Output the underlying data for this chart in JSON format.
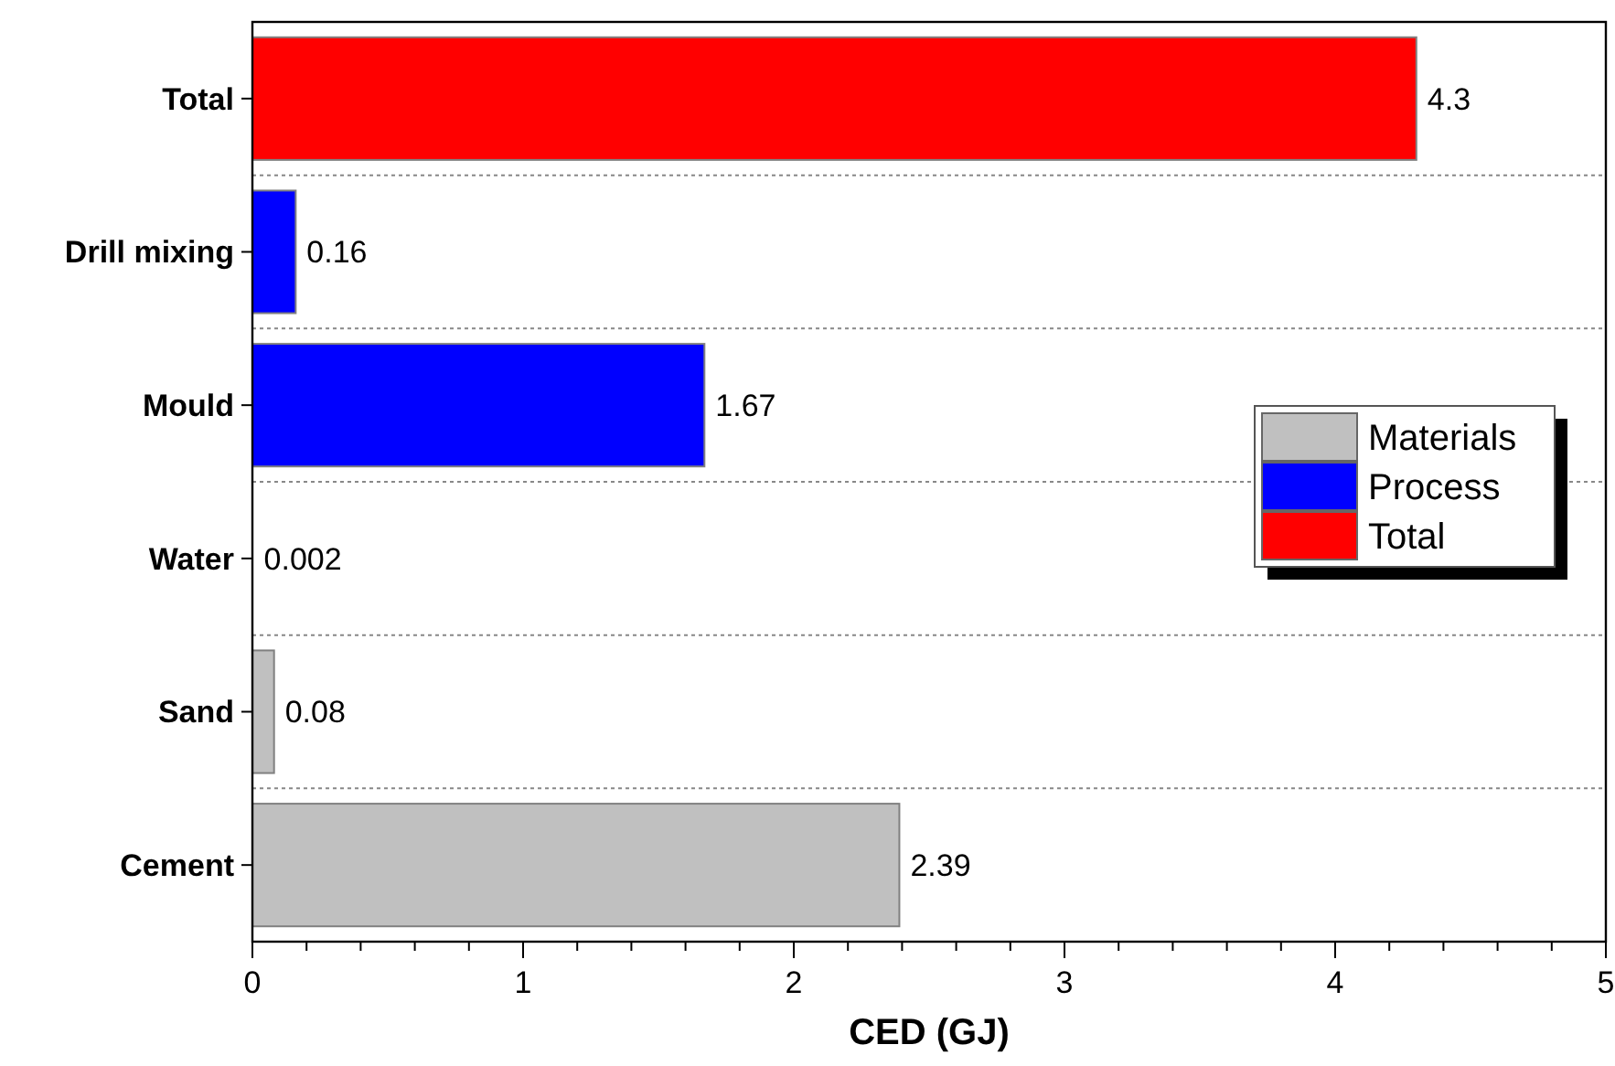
{
  "chart_data": {
    "type": "bar",
    "orientation": "horizontal",
    "xlabel": "CED (GJ)",
    "categories": [
      "Total",
      "Drill mixing",
      "Mould",
      "Water",
      "Sand",
      "Cement"
    ],
    "series": [
      {
        "name": "Materials",
        "color": "#c0c0c0",
        "values": [
          null,
          null,
          null,
          0.002,
          0.08,
          2.39
        ]
      },
      {
        "name": "Process",
        "color": "#0000ff",
        "values": [
          null,
          0.16,
          1.67,
          null,
          null,
          null
        ]
      },
      {
        "name": "Total",
        "color": "#ff0000",
        "values": [
          4.3,
          null,
          null,
          null,
          null,
          null
        ]
      }
    ],
    "xlim": [
      0,
      5
    ],
    "xticks": [
      0,
      {
        "value": 0.2,
        "label": null
      },
      {
        "value": 0.4,
        "label": null
      },
      {
        "value": 0.6,
        "label": null
      },
      {
        "value": 0.8,
        "label": null
      },
      1,
      {
        "value": 1.2,
        "label": null
      },
      {
        "value": 1.4,
        "label": null
      },
      {
        "value": 1.6,
        "label": null
      },
      {
        "value": 1.8,
        "label": null
      },
      2,
      {
        "value": 2.2,
        "label": null
      },
      {
        "value": 2.4,
        "label": null
      },
      {
        "value": 2.6,
        "label": null
      },
      {
        "value": 2.8,
        "label": null
      },
      3,
      {
        "value": 3.2,
        "label": null
      },
      {
        "value": 3.4,
        "label": null
      },
      {
        "value": 3.6,
        "label": null
      },
      {
        "value": 3.8,
        "label": null
      },
      4,
      {
        "value": 4.2,
        "label": null
      },
      {
        "value": 4.4,
        "label": null
      },
      {
        "value": 4.6,
        "label": null
      },
      {
        "value": 4.8,
        "label": null
      },
      5
    ],
    "data_labels": true,
    "grid": "y",
    "legend": "right"
  }
}
